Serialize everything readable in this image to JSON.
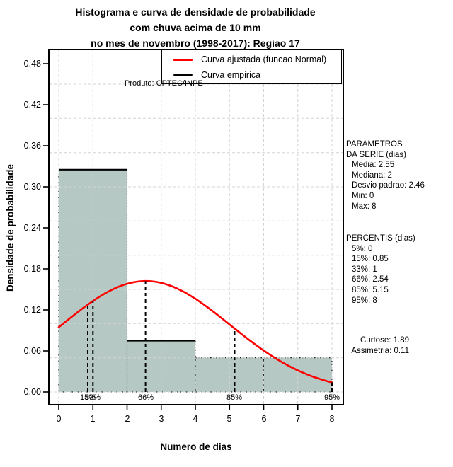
{
  "title": {
    "line1": "Histograma e curva de densidade de probabilidade",
    "line2": "com chuva acima de 10 mm",
    "line3": "no mes de novembro (1998-2017): Regiao 17"
  },
  "watermark": "Produto: CPTEC/INPE",
  "legend": {
    "items": [
      {
        "label": "Curva ajustada (funcao Normal)",
        "color": "#ff0000",
        "thickness": 3
      },
      {
        "label": "Curva empirica",
        "color": "#000000",
        "thickness": 2.4
      }
    ]
  },
  "axes": {
    "x_label": "Numero de dias",
    "y_label": "Densidade de probabilidade",
    "x_tick_labels": [
      "0",
      "1",
      "2",
      "3",
      "4",
      "5",
      "6",
      "7",
      "8"
    ],
    "y_tick_labels": [
      "0.00",
      "0.06",
      "0.12",
      "0.18",
      "0.24",
      "0.30",
      "0.36",
      "0.42",
      "0.48"
    ]
  },
  "side_panel": {
    "params_header_1": "PARAMETROS",
    "params_header_2": "DA SERIE (dias)",
    "params": [
      "Media: 2.55",
      "Mediana: 2",
      "Desvio padrao: 2.46",
      "Min: 0",
      "Max: 8"
    ],
    "percentis_header": "PERCENTIS (dias)",
    "percentis": [
      "5%: 0",
      "15%: 0.85",
      "33%: 1",
      "66%: 2.54",
      "85%: 5.15",
      "95%: 8"
    ],
    "moments": [
      "Curtose: 1.89",
      "Assimetria: 0.11"
    ]
  },
  "chart_data": {
    "type": "bar",
    "subtype": "histogram-with-density",
    "title": "Histograma e curva de densidade de probabilidade com chuva acima de 10 mm no mes de novembro (1998-2017): Regiao 17",
    "xlabel": "Numero de dias",
    "ylabel": "Densidade de probabilidade",
    "xlim": [
      0,
      8
    ],
    "ylim": [
      0,
      0.48
    ],
    "x_ticks": [
      0,
      1,
      2,
      3,
      4,
      5,
      6,
      7,
      8
    ],
    "y_ticks": [
      0.0,
      0.06,
      0.12,
      0.18,
      0.24,
      0.3,
      0.36,
      0.42,
      0.48
    ],
    "bars": [
      {
        "from": 0,
        "to": 2,
        "density": 0.325
      },
      {
        "from": 2,
        "to": 4,
        "density": 0.075
      },
      {
        "from": 4,
        "to": 6,
        "density": 0.05
      },
      {
        "from": 6,
        "to": 8,
        "density": 0.05
      }
    ],
    "bar_fill": "#b5c8c4",
    "empirical_segments": [
      [
        0,
        2,
        0.325
      ],
      [
        2,
        4,
        0.075
      ]
    ],
    "normal_curve": {
      "mean": 2.55,
      "sd": 2.46,
      "color": "#ff0000"
    },
    "percentile_lines": [
      {
        "label": "15%",
        "x": 0.85
      },
      {
        "label": "33%",
        "x": 1
      },
      {
        "label": "66%",
        "x": 2.54
      },
      {
        "label": "85%",
        "x": 5.15
      },
      {
        "label": "95%",
        "x": 8
      }
    ],
    "grid": {
      "x_step": 1,
      "y_step": 0.05,
      "y_max": 0.45,
      "color": "#d4d4d4",
      "style": "dashed"
    },
    "legend_position": "top-right"
  }
}
